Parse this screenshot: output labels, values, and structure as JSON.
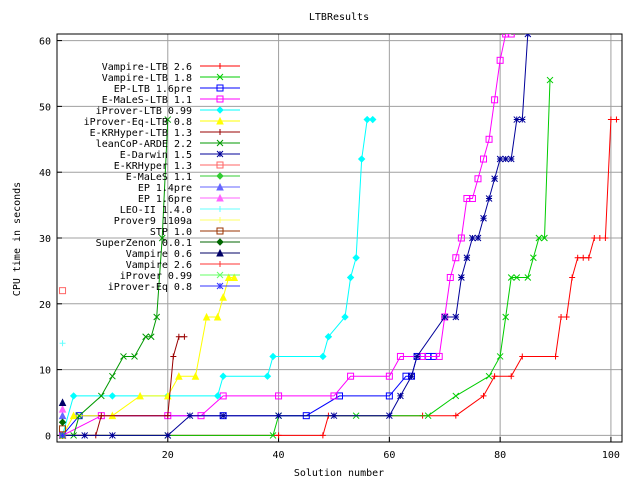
{
  "chart_data": {
    "type": "line",
    "title": "LTBResults",
    "xlabel": "Solution number",
    "ylabel": "CPU time in seconds",
    "xlim": [
      0,
      102
    ],
    "ylim": [
      -1,
      61
    ],
    "xticks": [
      20,
      40,
      60,
      80,
      100
    ],
    "yticks": [
      0,
      10,
      20,
      30,
      40,
      50,
      60
    ],
    "grid": true,
    "legend_position": "top-left",
    "series": [
      {
        "name": "Vampire-LTB 2.6",
        "color": "#ff0000",
        "marker": "plus",
        "x": [
          1,
          20,
          40,
          48,
          49,
          66,
          72,
          77,
          79,
          82,
          84,
          90,
          91,
          92,
          93,
          94,
          95,
          96,
          97,
          98,
          99,
          100,
          101
        ],
        "y": [
          0,
          0,
          0,
          0,
          3,
          3,
          3,
          6,
          9,
          9,
          12,
          12,
          18,
          18,
          24,
          27,
          27,
          27,
          30,
          30,
          30,
          48,
          48
        ]
      },
      {
        "name": "Vampire-LTB 1.8",
        "color": "#00cc00",
        "marker": "cross",
        "x": [
          1,
          20,
          39,
          40,
          54,
          67,
          72,
          78,
          80,
          81,
          82,
          83,
          85,
          86,
          87,
          88,
          89
        ],
        "y": [
          0,
          0,
          0,
          3,
          3,
          3,
          6,
          9,
          12,
          18,
          24,
          24,
          24,
          27,
          30,
          30,
          54
        ]
      },
      {
        "name": "EP-LTB 1.6pre",
        "color": "#0000ff",
        "marker": "square",
        "x": [
          1,
          4,
          30,
          45,
          51,
          60,
          63,
          64,
          65,
          67,
          68
        ],
        "y": [
          0,
          3,
          3,
          3,
          6,
          6,
          9,
          9,
          12,
          12,
          12
        ]
      },
      {
        "name": "E-MaLeS-LTB 1.1",
        "color": "#ff00ff",
        "marker": "square",
        "x": [
          1,
          8,
          20,
          26,
          30,
          40,
          50,
          53,
          60,
          62,
          66,
          69,
          70,
          71,
          72,
          73,
          74,
          75,
          76,
          77,
          78,
          79,
          80,
          81,
          82
        ],
        "y": [
          0,
          3,
          3,
          3,
          6,
          6,
          6,
          9,
          9,
          12,
          12,
          12,
          18,
          24,
          27,
          30,
          36,
          36,
          39,
          42,
          45,
          51,
          57,
          61,
          61
        ]
      },
      {
        "name": "iProver-LTB 0.99",
        "color": "#00ffff",
        "marker": "diamond",
        "x": [
          1,
          3,
          10,
          20,
          29,
          30,
          38,
          39,
          48,
          49,
          52,
          53,
          54,
          55,
          56,
          57
        ],
        "y": [
          0,
          6,
          6,
          6,
          6,
          9,
          9,
          12,
          12,
          15,
          18,
          24,
          27,
          42,
          48,
          48
        ]
      },
      {
        "name": "iProver-Eq-LTB 0.8",
        "color": "#ffff00",
        "marker": "tri",
        "x": [
          1,
          3,
          10,
          15,
          20,
          22,
          25,
          27,
          29,
          30,
          31,
          32
        ],
        "y": [
          0,
          3,
          3,
          6,
          6,
          9,
          9,
          18,
          18,
          21,
          24,
          24
        ]
      },
      {
        "name": "E-KRHyper-LTB 1.3",
        "color": "#990000",
        "marker": "plus",
        "x": [
          1,
          7,
          8,
          20,
          21,
          22,
          23
        ],
        "y": [
          0,
          0,
          3,
          3,
          12,
          15,
          15
        ]
      },
      {
        "name": "leanCoP-ARDE 2.2",
        "color": "#009900",
        "marker": "cross",
        "x": [
          1,
          3,
          4,
          8,
          10,
          12,
          14,
          16,
          17,
          18,
          19,
          20
        ],
        "y": [
          0,
          0,
          3,
          6,
          9,
          12,
          12,
          15,
          15,
          18,
          30,
          48
        ]
      },
      {
        "name": "E-Darwin 1.5",
        "color": "#000099",
        "marker": "star",
        "x": [
          1,
          5,
          10,
          20,
          24,
          30,
          40,
          50,
          60,
          62,
          64,
          65,
          70,
          72,
          73,
          74,
          75,
          76,
          77,
          78,
          79,
          80,
          81,
          82,
          83,
          84,
          85
        ],
        "y": [
          0,
          0,
          0,
          0,
          3,
          3,
          3,
          3,
          3,
          6,
          9,
          12,
          18,
          18,
          24,
          27,
          30,
          30,
          33,
          36,
          39,
          42,
          42,
          42,
          48,
          48,
          61
        ]
      },
      {
        "name": "E-KRHyper 1.3",
        "color": "#ff6666",
        "marker": "square",
        "x": [
          1
        ],
        "y": [
          22
        ]
      },
      {
        "name": "E-MaLeS 1.1",
        "color": "#33cc33",
        "marker": "diamond",
        "x": [
          1
        ],
        "y": [
          0
        ]
      },
      {
        "name": "EP 1.4pre",
        "color": "#6666ff",
        "marker": "tri",
        "x": [
          1
        ],
        "y": [
          3
        ]
      },
      {
        "name": "EP 1.6pre",
        "color": "#ff66ff",
        "marker": "tri",
        "x": [
          1
        ],
        "y": [
          4
        ]
      },
      {
        "name": "LEO-II 1.4.0",
        "color": "#66ffff",
        "marker": "plus",
        "x": [
          1
        ],
        "y": [
          14
        ]
      },
      {
        "name": "Prover9 1109a",
        "color": "#ffff66",
        "marker": "plus",
        "x": [
          1
        ],
        "y": [
          2
        ]
      },
      {
        "name": "STP 1.0",
        "color": "#993300",
        "marker": "square",
        "x": [
          1
        ],
        "y": [
          1
        ]
      },
      {
        "name": "SuperZenon 0.0.1",
        "color": "#006600",
        "marker": "diamond",
        "x": [
          1
        ],
        "y": [
          2
        ]
      },
      {
        "name": "Vampire 0.6",
        "color": "#000066",
        "marker": "tri",
        "x": [
          1
        ],
        "y": [
          5
        ]
      },
      {
        "name": "Vampire 2.6",
        "color": "#ff3333",
        "marker": "plus",
        "x": [
          1
        ],
        "y": [
          0
        ]
      },
      {
        "name": "iProver 0.99",
        "color": "#66ff66",
        "marker": "cross",
        "x": [
          1
        ],
        "y": [
          0
        ]
      },
      {
        "name": "iProver-Eq 0.8",
        "color": "#3333ff",
        "marker": "star",
        "x": [
          1
        ],
        "y": [
          0
        ]
      }
    ]
  }
}
